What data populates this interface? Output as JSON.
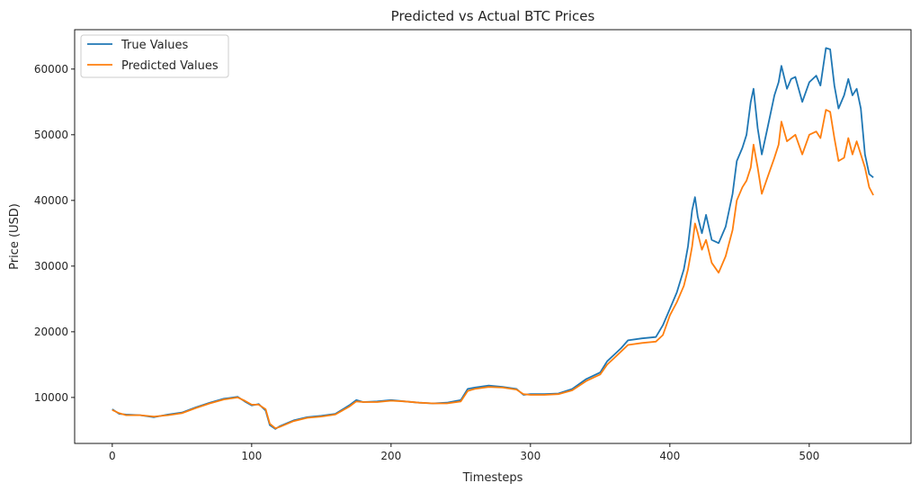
{
  "chart_data": {
    "type": "line",
    "title": "Predicted vs Actual BTC Prices",
    "xlabel": "Timesteps",
    "ylabel": "Price (USD)",
    "xlim": [
      -27,
      573
    ],
    "ylim": [
      3000,
      66000
    ],
    "x_ticks": [
      0,
      100,
      200,
      300,
      400,
      500
    ],
    "y_ticks": [
      10000,
      20000,
      30000,
      40000,
      50000,
      60000
    ],
    "x_tick_labels": [
      "0",
      "100",
      "200",
      "300",
      "400",
      "500"
    ],
    "y_tick_labels": [
      "10000",
      "20000",
      "30000",
      "40000",
      "50000",
      "60000"
    ],
    "grid": false,
    "legend_position": "upper-left",
    "series": [
      {
        "name": "True Values",
        "color": "#1f77b4",
        "points": [
          [
            0,
            8200
          ],
          [
            5,
            7500
          ],
          [
            10,
            7400
          ],
          [
            20,
            7300
          ],
          [
            30,
            7000
          ],
          [
            40,
            7400
          ],
          [
            50,
            7700
          ],
          [
            60,
            8500
          ],
          [
            70,
            9200
          ],
          [
            80,
            9800
          ],
          [
            90,
            10100
          ],
          [
            95,
            9400
          ],
          [
            100,
            8800
          ],
          [
            105,
            9000
          ],
          [
            110,
            8000
          ],
          [
            113,
            5800
          ],
          [
            117,
            5200
          ],
          [
            120,
            5600
          ],
          [
            130,
            6500
          ],
          [
            140,
            7000
          ],
          [
            150,
            7200
          ],
          [
            160,
            7500
          ],
          [
            170,
            8800
          ],
          [
            175,
            9600
          ],
          [
            180,
            9300
          ],
          [
            190,
            9400
          ],
          [
            200,
            9600
          ],
          [
            210,
            9400
          ],
          [
            220,
            9200
          ],
          [
            230,
            9100
          ],
          [
            240,
            9200
          ],
          [
            250,
            9600
          ],
          [
            255,
            11300
          ],
          [
            260,
            11500
          ],
          [
            270,
            11800
          ],
          [
            280,
            11600
          ],
          [
            290,
            11300
          ],
          [
            295,
            10400
          ],
          [
            300,
            10500
          ],
          [
            310,
            10500
          ],
          [
            320,
            10600
          ],
          [
            330,
            11300
          ],
          [
            340,
            12800
          ],
          [
            350,
            13800
          ],
          [
            355,
            15500
          ],
          [
            360,
            16500
          ],
          [
            365,
            17500
          ],
          [
            370,
            18700
          ],
          [
            380,
            19000
          ],
          [
            390,
            19200
          ],
          [
            395,
            21000
          ],
          [
            400,
            23500
          ],
          [
            405,
            26000
          ],
          [
            410,
            29500
          ],
          [
            413,
            33000
          ],
          [
            416,
            38500
          ],
          [
            418,
            40500
          ],
          [
            420,
            37500
          ],
          [
            423,
            35000
          ],
          [
            426,
            37800
          ],
          [
            430,
            34000
          ],
          [
            435,
            33500
          ],
          [
            440,
            36000
          ],
          [
            445,
            41000
          ],
          [
            448,
            46000
          ],
          [
            452,
            48000
          ],
          [
            455,
            50000
          ],
          [
            458,
            55000
          ],
          [
            460,
            57000
          ],
          [
            463,
            51000
          ],
          [
            466,
            47000
          ],
          [
            470,
            51000
          ],
          [
            475,
            56000
          ],
          [
            478,
            58000
          ],
          [
            480,
            60500
          ],
          [
            484,
            57000
          ],
          [
            487,
            58500
          ],
          [
            490,
            58800
          ],
          [
            495,
            55000
          ],
          [
            500,
            58000
          ],
          [
            505,
            59000
          ],
          [
            508,
            57500
          ],
          [
            512,
            63200
          ],
          [
            515,
            63000
          ],
          [
            518,
            57500
          ],
          [
            521,
            54000
          ],
          [
            525,
            56000
          ],
          [
            528,
            58500
          ],
          [
            531,
            56000
          ],
          [
            534,
            57000
          ],
          [
            537,
            54000
          ],
          [
            540,
            47000
          ],
          [
            543,
            44000
          ],
          [
            546,
            43500
          ]
        ]
      },
      {
        "name": "Predicted Values",
        "color": "#ff7f0e",
        "points": [
          [
            0,
            8100
          ],
          [
            5,
            7600
          ],
          [
            10,
            7300
          ],
          [
            20,
            7300
          ],
          [
            30,
            7100
          ],
          [
            40,
            7300
          ],
          [
            50,
            7600
          ],
          [
            60,
            8400
          ],
          [
            70,
            9100
          ],
          [
            80,
            9700
          ],
          [
            90,
            10000
          ],
          [
            95,
            9500
          ],
          [
            100,
            8900
          ],
          [
            105,
            8900
          ],
          [
            110,
            8200
          ],
          [
            113,
            6000
          ],
          [
            117,
            5300
          ],
          [
            120,
            5500
          ],
          [
            130,
            6400
          ],
          [
            140,
            6900
          ],
          [
            150,
            7100
          ],
          [
            160,
            7400
          ],
          [
            170,
            8600
          ],
          [
            175,
            9400
          ],
          [
            180,
            9300
          ],
          [
            190,
            9300
          ],
          [
            200,
            9500
          ],
          [
            210,
            9400
          ],
          [
            220,
            9200
          ],
          [
            230,
            9100
          ],
          [
            240,
            9100
          ],
          [
            250,
            9400
          ],
          [
            255,
            11000
          ],
          [
            260,
            11300
          ],
          [
            270,
            11600
          ],
          [
            280,
            11500
          ],
          [
            290,
            11200
          ],
          [
            295,
            10500
          ],
          [
            300,
            10400
          ],
          [
            310,
            10400
          ],
          [
            320,
            10500
          ],
          [
            330,
            11100
          ],
          [
            340,
            12500
          ],
          [
            350,
            13500
          ],
          [
            355,
            15000
          ],
          [
            360,
            16000
          ],
          [
            365,
            17000
          ],
          [
            370,
            18000
          ],
          [
            380,
            18300
          ],
          [
            390,
            18500
          ],
          [
            395,
            19500
          ],
          [
            400,
            22500
          ],
          [
            405,
            24500
          ],
          [
            410,
            27000
          ],
          [
            413,
            29500
          ],
          [
            416,
            33000
          ],
          [
            418,
            36500
          ],
          [
            420,
            35000
          ],
          [
            423,
            32500
          ],
          [
            426,
            34000
          ],
          [
            430,
            30500
          ],
          [
            435,
            29000
          ],
          [
            440,
            31500
          ],
          [
            445,
            35500
          ],
          [
            448,
            40000
          ],
          [
            452,
            42000
          ],
          [
            455,
            43000
          ],
          [
            458,
            45000
          ],
          [
            460,
            48500
          ],
          [
            463,
            45000
          ],
          [
            466,
            41000
          ],
          [
            470,
            43500
          ],
          [
            475,
            46500
          ],
          [
            478,
            48500
          ],
          [
            480,
            52000
          ],
          [
            484,
            49000
          ],
          [
            487,
            49500
          ],
          [
            490,
            50000
          ],
          [
            495,
            47000
          ],
          [
            500,
            50000
          ],
          [
            505,
            50500
          ],
          [
            508,
            49500
          ],
          [
            512,
            53800
          ],
          [
            515,
            53500
          ],
          [
            518,
            49500
          ],
          [
            521,
            46000
          ],
          [
            525,
            46500
          ],
          [
            528,
            49500
          ],
          [
            531,
            47000
          ],
          [
            534,
            49000
          ],
          [
            537,
            47000
          ],
          [
            540,
            45000
          ],
          [
            543,
            42000
          ],
          [
            546,
            40800
          ]
        ]
      }
    ]
  }
}
